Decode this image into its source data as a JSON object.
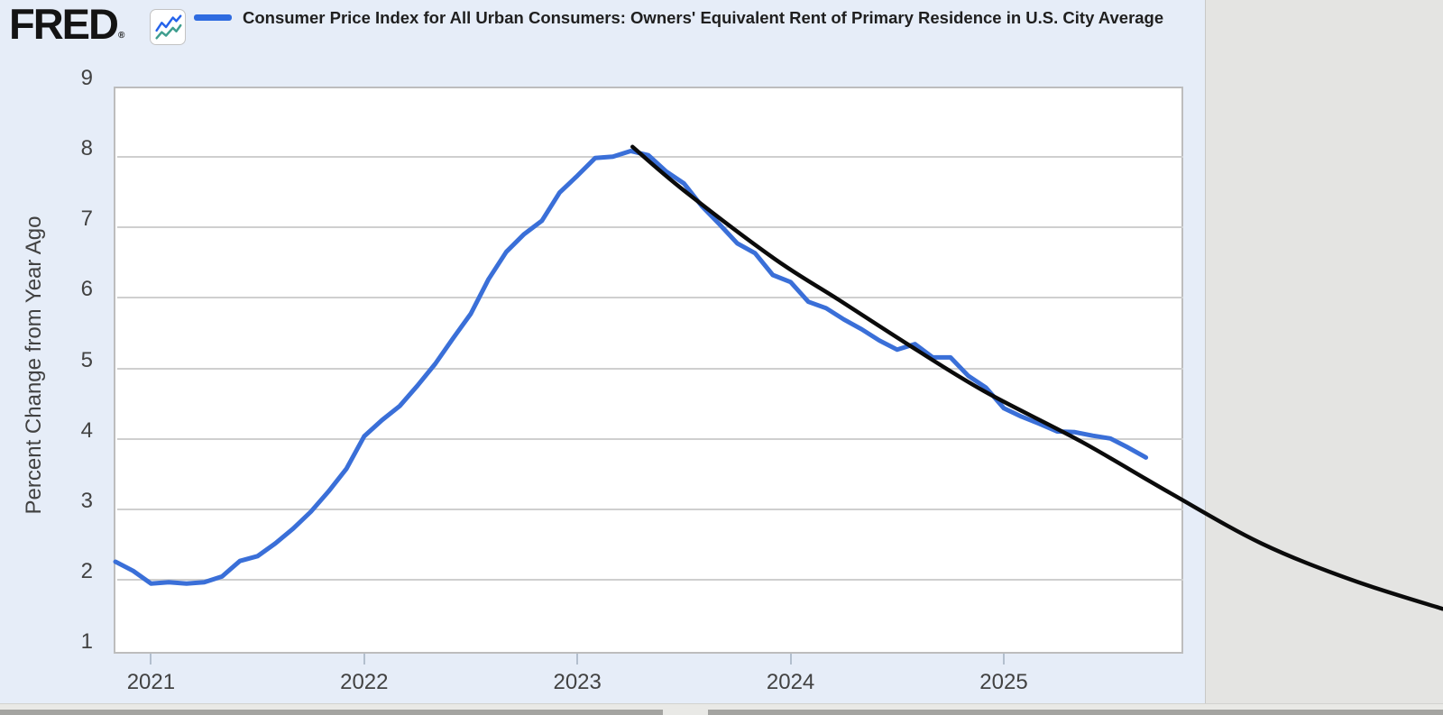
{
  "header": {
    "brand": "FRED",
    "registered_mark": "®",
    "legend_label": "Consumer Price Index for All Urban Consumers: Owners' Equivalent Rent of Primary Residence in U.S. City Average"
  },
  "colors": {
    "series_blue": "#3a6fd8",
    "legend_swatch": "#2e6be0",
    "annotation_black": "#0b0b0b",
    "chart_bg": "#e6edf8",
    "plot_bg": "#ffffff",
    "outside_bg": "#e4e4e2",
    "gridline": "#cfcfcf",
    "plot_border": "#bdbdbd",
    "tick": "#b3bfce",
    "axis_text": "#424242",
    "icon_blue": "#2563eb",
    "icon_teal": "#3f9e8f"
  },
  "chart_data": {
    "type": "line",
    "title": "Consumer Price Index for All Urban Consumers: Owners' Equivalent Rent of Primary Residence in U.S. City Average",
    "ylabel": "Percent Change from Year Ago",
    "xlabel": "",
    "ylim": [
      1,
      9
    ],
    "y_ticks": [
      1,
      2,
      3,
      4,
      5,
      6,
      7,
      8,
      9
    ],
    "x_ticks": [
      "2021",
      "2022",
      "2023",
      "2024",
      "2025"
    ],
    "grid": "horizontal",
    "legend_position": "top",
    "series": [
      {
        "name": "CPI Owners' Equivalent Rent, percent change from year ago",
        "frequency": "monthly",
        "start_date": "2020-11",
        "end_date": "2025-09",
        "values": [
          2.28,
          2.15,
          1.97,
          1.99,
          1.97,
          1.99,
          2.07,
          2.29,
          2.36,
          2.54,
          2.75,
          2.99,
          3.28,
          3.6,
          4.06,
          4.29,
          4.49,
          4.78,
          5.09,
          5.45,
          5.8,
          6.29,
          6.68,
          6.93,
          7.12,
          7.52,
          7.76,
          8.01,
          8.03,
          8.11,
          8.05,
          7.82,
          7.65,
          7.33,
          7.07,
          6.8,
          6.66,
          6.35,
          6.25,
          5.97,
          5.88,
          5.72,
          5.58,
          5.42,
          5.29,
          5.37,
          5.18,
          5.18,
          4.92,
          4.75,
          4.46,
          4.34,
          4.24,
          4.13,
          4.12,
          4.07,
          4.03,
          3.9,
          3.76
        ]
      }
    ],
    "annotation": {
      "name": "hand-drawn trend curve from Apr-2023 peak, extending past plot edge",
      "points_months_value": [
        [
          27.1,
          8.17
        ],
        [
          30.0,
          7.55
        ],
        [
          35.1,
          6.58
        ],
        [
          38.7,
          6.0
        ],
        [
          42.7,
          5.35
        ],
        [
          46.9,
          4.7
        ],
        [
          52.4,
          3.98
        ],
        [
          57.4,
          3.25
        ],
        [
          62.5,
          2.54
        ],
        [
          67.6,
          2.02
        ],
        [
          72.7,
          1.61
        ]
      ]
    }
  }
}
